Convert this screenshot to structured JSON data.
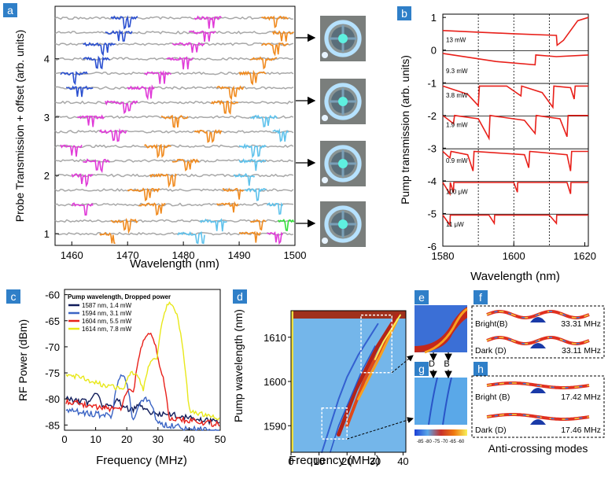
{
  "colors": {
    "panel_label_bg": "#2f7fc8",
    "trace_gray": "#a8a8a8",
    "blue": "#2a4fd0",
    "magenta": "#e03ad8",
    "orange": "#f08a1e",
    "cyan": "#5ec2ec",
    "green": "#33e03a",
    "red": "#e8201a",
    "navy": "#101c5a",
    "mid_blue": "#3b64c4",
    "yellow": "#e8e81a"
  },
  "panels": {
    "a": {
      "label": "a",
      "xlabel": "Wavelength (nm)",
      "ylabel": "Probe Transmission + offset (arb. units)",
      "xticks": [
        "1460",
        "1470",
        "1480",
        "1490",
        "1500"
      ],
      "yticks": [
        "1",
        "2",
        "3",
        "4"
      ]
    },
    "b": {
      "label": "b",
      "xlabel": "Wavelength (nm)",
      "ylabel": "Pump transmission (arb. units)",
      "xticks": [
        "1580",
        "1600",
        "1620"
      ],
      "yticks": [
        "1",
        "0",
        "-1",
        "-2",
        "-3",
        "-4",
        "-5",
        "-6"
      ],
      "power_labels": [
        "13 mW",
        "9.3 mW",
        "3.8 mW",
        "1.9 mW",
        "0.9 mW",
        "100  μW",
        "11  μW"
      ]
    },
    "c": {
      "label": "c",
      "xlabel": "Frequency (MHz)",
      "ylabel": "RF Power (dBm)",
      "xticks": [
        "0",
        "10",
        "20",
        "30",
        "40",
        "50"
      ],
      "yticks": [
        "-60",
        "-65",
        "-70",
        "-75",
        "-80",
        "-85"
      ],
      "legend_title": "Pump wavelength, Dropped power",
      "legend": [
        "1587 nm, 1.4 mW",
        "1594 nm, 3.1 mW",
        "1604 nm, 5.5 mW",
        "1614 nm, 7.8 mW"
      ]
    },
    "d": {
      "label": "d",
      "xlabel": "Frequency (MHz)",
      "ylabel": "Pump wavelength (nm)",
      "xticks": [
        "0",
        "10",
        "20",
        "30",
        "40"
      ],
      "yticks": [
        "1610",
        "1600",
        "1590"
      ],
      "colorbar_ticks": "-85 -80 -75 -70 -65 -60"
    },
    "e": {
      "label": "e"
    },
    "g": {
      "label": "g",
      "mode_d": "D",
      "mode_b": "B"
    },
    "f": {
      "label": "f",
      "bright_label": "Bright(B)",
      "bright_freq": "33.31 MHz",
      "dark_label": "Dark (D)",
      "dark_freq": "33.11 MHz"
    },
    "h": {
      "label": "h",
      "bright_label": "Bright (B)",
      "bright_freq": "17.42 MHz",
      "dark_label": "Dark (D)",
      "dark_freq": "17.46 MHz"
    },
    "anticrossing_caption": "Anti-crossing modes"
  },
  "chart_data": [
    {
      "type": "line",
      "title": "",
      "panel": "a",
      "xlabel": "Wavelength (nm)",
      "ylabel": "Probe Transmission + offset (arb. units)",
      "xlim": [
        1457,
        1500
      ],
      "ylim": [
        0.8,
        4.9
      ],
      "series_count": 17,
      "note": "Stacked probe transmission traces with colored resonance dips"
    },
    {
      "type": "line",
      "panel": "b",
      "xlabel": "Wavelength (nm)",
      "ylabel": "Pump transmission (arb. units)",
      "xlim": [
        1580,
        1621
      ],
      "ylim": [
        -6,
        1.1
      ],
      "series": [
        {
          "name": "13 mW",
          "offset": 0.6
        },
        {
          "name": "9.3 mW",
          "offset": -0.35
        },
        {
          "name": "3.8 mW",
          "offset": -1.1
        },
        {
          "name": "1.9 mW",
          "offset": -2.0
        },
        {
          "name": "0.9 mW",
          "offset": -3.1
        },
        {
          "name": "100 μW",
          "offset": -4.05
        },
        {
          "name": "11 μW",
          "offset": -5.05
        }
      ]
    },
    {
      "type": "line",
      "panel": "c",
      "xlabel": "Frequency (MHz)",
      "ylabel": "RF Power (dBm)",
      "xlim": [
        0,
        50
      ],
      "ylim": [
        -86,
        -59
      ],
      "series": [
        {
          "name": "1587 nm, 1.4 mW",
          "peak_x": 10,
          "peak_y": -79
        },
        {
          "name": "1594 nm, 3.1 mW",
          "peak_x": 18.5,
          "peak_y": -75.5
        },
        {
          "name": "1604 nm, 5.5 mW",
          "peak_x": 27,
          "peak_y": -67.5
        },
        {
          "name": "1614 nm, 7.8 mW",
          "peak_x": 34,
          "peak_y": -61.5
        }
      ]
    },
    {
      "type": "heatmap",
      "panel": "d",
      "xlabel": "Frequency (MHz)",
      "ylabel": "Pump wavelength (nm)",
      "xlim": [
        0,
        41
      ],
      "ylim": [
        1584,
        1616
      ],
      "zrange": [
        -85,
        -60
      ]
    }
  ]
}
